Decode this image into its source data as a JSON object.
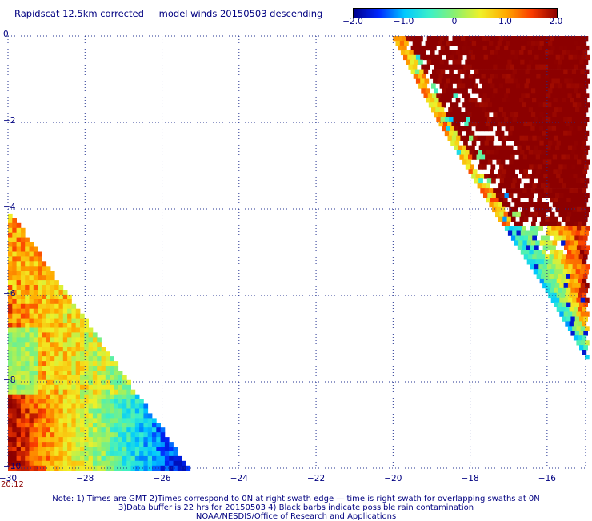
{
  "title": "Rapidscat 12.5km corrected — model winds 20150503 descending",
  "colorbar": {
    "labels": [
      "−2.0",
      "−1.0",
      "0",
      "1.0",
      "2.0"
    ],
    "values": [
      -2.0,
      -1.0,
      0,
      1.0,
      2.0
    ],
    "range": [
      -2.0,
      2.0
    ]
  },
  "map": {
    "lat_range": [
      -10,
      0
    ],
    "lon_range": [
      -30,
      -15
    ],
    "lat_labels": [
      "0",
      "−2",
      "−4",
      "−6",
      "−8",
      "−10"
    ],
    "lat_values": [
      0,
      -2,
      -4,
      -6,
      -8,
      -10
    ],
    "lon_labels": [
      "−30",
      "−28",
      "−26",
      "−24",
      "−22",
      "−20",
      "−18",
      "−16"
    ],
    "lon_values": [
      -30,
      -28,
      -26,
      -24,
      -22,
      -20,
      -18,
      -16
    ],
    "grid": "dotted",
    "swaths": [
      {
        "name": "right",
        "top_edge_lon": [
          -20,
          -15
        ],
        "inner_edge": [
          [
            -20.0,
            0
          ],
          [
            -18.8,
            -2
          ],
          [
            -17.4,
            -4
          ],
          [
            -16.2,
            -5.6
          ],
          [
            -15.0,
            -7.4
          ]
        ],
        "pattern": "high positive (dark red) in interior, decreasing toward the inner (southwest) edge; white gaps = no data"
      },
      {
        "name": "left",
        "corners": [
          [
            -30,
            -4
          ],
          [
            -30,
            -10
          ],
          [
            -25.3,
            -10
          ]
        ],
        "pattern": "orange/yellow positive values at west, reds in southwest corner, blue/cyan negatives toward southeast"
      }
    ]
  },
  "time_label": "20:12",
  "notes": [
    "Note: 1) Times are GMT 2)Times correspond to 0N at right swath edge — time is right swath for overlapping swaths at 0N",
    "3)Data buffer is 22 hrs for 20150503 4) Black barbs indicate possible rain contamination",
    "NOAA/NESDIS/Office of Research and Applications"
  ]
}
